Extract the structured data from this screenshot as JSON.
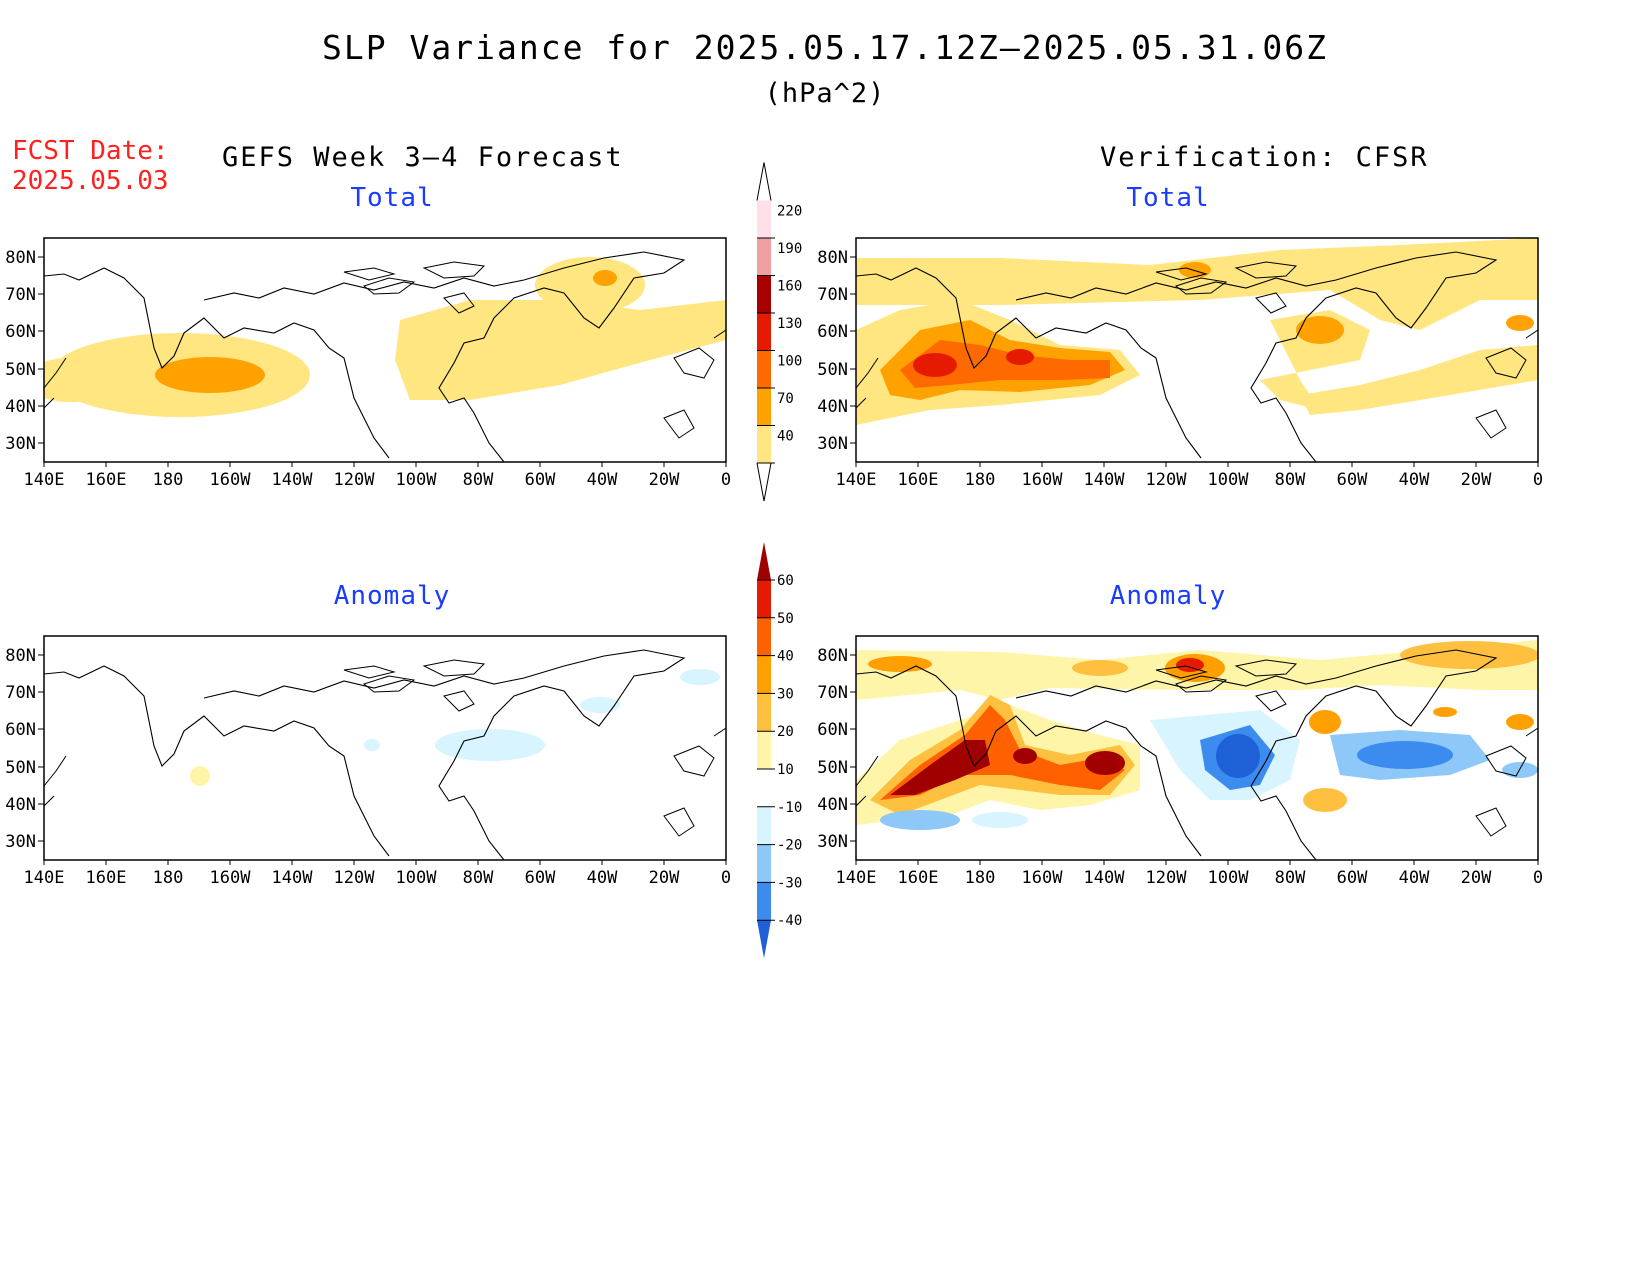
{
  "title": "SLP Variance for 2025.05.17.12Z–2025.05.31.06Z",
  "units": "(hPa^2)",
  "fcst": {
    "label": "FCST Date:",
    "date": "2025.05.03"
  },
  "columns": {
    "left": "GEFS Week 3–4 Forecast",
    "right": "Verification: CFSR"
  },
  "panels": [
    {
      "id": "fcst-total",
      "title": "Total"
    },
    {
      "id": "verif-total",
      "title": "Total"
    },
    {
      "id": "fcst-anom",
      "title": "Anomaly"
    },
    {
      "id": "verif-anom",
      "title": "Anomaly"
    }
  ],
  "axes": {
    "lat_labels": [
      "30N",
      "40N",
      "50N",
      "60N",
      "70N",
      "80N"
    ],
    "lon_labels": [
      "140E",
      "160E",
      "180",
      "160W",
      "140W",
      "120W",
      "100W",
      "80W",
      "60W",
      "40W",
      "20W",
      "0"
    ]
  },
  "colorbars": {
    "total": {
      "levels": [
        "40",
        "70",
        "100",
        "130",
        "160",
        "190",
        "220"
      ],
      "colors": [
        "#ffe680",
        "#ffa200",
        "#ff6a00",
        "#e61a00",
        "#a80000",
        "#f0a0a0",
        "#ffe0e8"
      ]
    },
    "anomaly": {
      "levels": [
        "-40",
        "-30",
        "-20",
        "-10",
        "10",
        "20",
        "30",
        "40",
        "50",
        "60"
      ],
      "colors": [
        "#1e60d6",
        "#3c8cf0",
        "#8ec8f8",
        "#d8f4ff",
        "#ffffff",
        "#fff5a8",
        "#ffc040",
        "#ffa000",
        "#ff6000",
        "#e61a00",
        "#a00000"
      ]
    }
  }
}
